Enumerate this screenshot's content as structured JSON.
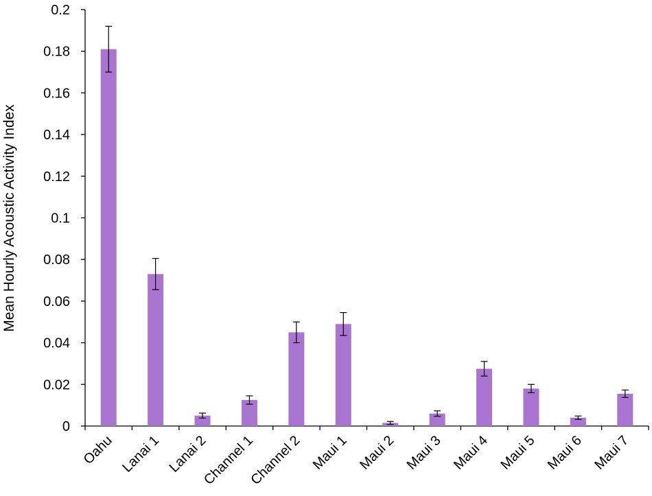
{
  "chart_data": {
    "type": "bar",
    "title": "",
    "xlabel": "",
    "ylabel": "Mean Hourly Acoustic Activity Index",
    "ylim": [
      0,
      0.2
    ],
    "yticks": [
      "0",
      "0.02",
      "0.04",
      "0.06",
      "0.08",
      "0.1",
      "0.12",
      "0.14",
      "0.16",
      "0.18",
      "0.2"
    ],
    "categories": [
      "Oahu",
      "Lanai 1",
      "Lanai 2",
      "Channel 1",
      "Channel 2",
      "Maui 1",
      "Maui 2",
      "Maui 3",
      "Maui 4",
      "Maui 5",
      "Maui 6",
      "Maui 7"
    ],
    "values": [
      0.181,
      0.073,
      0.005,
      0.0125,
      0.045,
      0.049,
      0.0015,
      0.006,
      0.0275,
      0.018,
      0.004,
      0.0155
    ],
    "error": [
      0.011,
      0.0075,
      0.0012,
      0.002,
      0.005,
      0.0055,
      0.0007,
      0.0013,
      0.0035,
      0.002,
      0.0008,
      0.0018
    ],
    "bar_color": "#a975d1",
    "grid": false,
    "legend": "none"
  }
}
